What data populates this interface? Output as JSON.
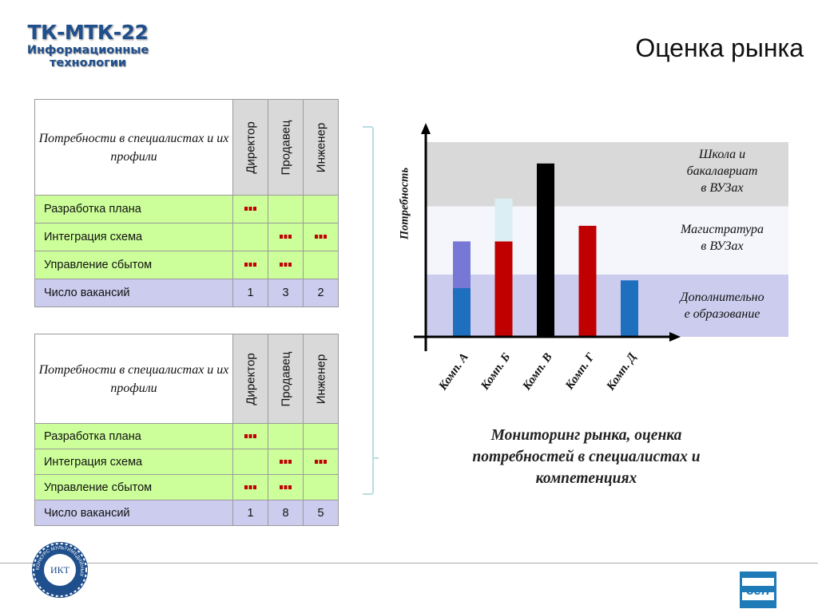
{
  "logo": {
    "title": "ТК-МТК-22",
    "line1": "Информационные",
    "line2": "технологии"
  },
  "title": "Оценка рынка",
  "tables": [
    {
      "header": "Потребности в специалистах и их профили",
      "roles": [
        "Директор",
        "Продавец",
        "Инженер"
      ],
      "rows": [
        {
          "label": "Разработка плана",
          "marks": [
            true,
            false,
            false
          ]
        },
        {
          "label": "Интеграция схема",
          "marks": [
            false,
            true,
            true
          ]
        },
        {
          "label": "Управление сбытом",
          "marks": [
            true,
            true,
            false
          ]
        }
      ],
      "vacancies": {
        "label": "Число вакансий",
        "values": [
          "1",
          "3",
          "2"
        ]
      }
    },
    {
      "header": "Потребности в специалистах и их профили",
      "roles": [
        "Директор",
        "Продавец",
        "Инженер"
      ],
      "rows": [
        {
          "label": "Разработка плана",
          "marks": [
            true,
            false,
            false
          ]
        },
        {
          "label": "Интеграция схема",
          "marks": [
            false,
            true,
            true
          ]
        },
        {
          "label": "Управление сбытом",
          "marks": [
            true,
            true,
            false
          ]
        }
      ],
      "vacancies": {
        "label": "Число вакансий",
        "values": [
          "1",
          "8",
          "5"
        ]
      }
    }
  ],
  "chart_data": {
    "type": "bar",
    "stacked": true,
    "ylabel": "Потребность",
    "xlabel": "",
    "categories": [
      "Комп. А",
      "Комп. Б",
      "Комп. В",
      "Комп. Г",
      "Комп. Д"
    ],
    "ylim": [
      0,
      100
    ],
    "bands": [
      {
        "label": "Дополнительное образование",
        "from": 0,
        "to": 32,
        "color": "#ccccee"
      },
      {
        "label": "Магистратура в ВУЗах",
        "from": 32,
        "to": 67,
        "color": "#f4f6fb"
      },
      {
        "label": "Школа и бакалавриат в ВУЗах",
        "from": 67,
        "to": 100,
        "color": "#d9d9d9"
      }
    ],
    "band_labels_lines": [
      [
        "Школа и",
        "бакалавриат",
        "в ВУЗах"
      ],
      [
        "Магистратура",
        "в ВУЗах"
      ],
      [
        "Дополнительно",
        "е образование"
      ]
    ],
    "bars": [
      [
        {
          "value": 25,
          "color": "#1f6fbf"
        },
        {
          "value": 24,
          "color": "#7777d6"
        }
      ],
      [
        {
          "value": 49,
          "color": "#c00000"
        },
        {
          "value": 22,
          "color": "#daeef3"
        }
      ],
      [
        {
          "value": 89,
          "color": "#000000"
        }
      ],
      [
        {
          "value": 57,
          "color": "#c00000"
        }
      ],
      [
        {
          "value": 29,
          "color": "#1f6fbf"
        }
      ]
    ]
  },
  "caption": [
    "Мониторинг рынка, оценка",
    "потребностей в специалистах и",
    "компетенциях"
  ],
  "badge": {
    "text": "ИКТ",
    "ring_text": "КОНКУРС МУЛЬТИМЕДИЙНЫХ"
  },
  "cen_logo": {
    "text": "cen"
  },
  "colors": {
    "logo_blue": "#1f4f8c",
    "row_green": "#ccff99",
    "vacancy_lilac": "#ccccee",
    "header_gray": "#d9d9d9",
    "mark_red": "#c00000"
  }
}
